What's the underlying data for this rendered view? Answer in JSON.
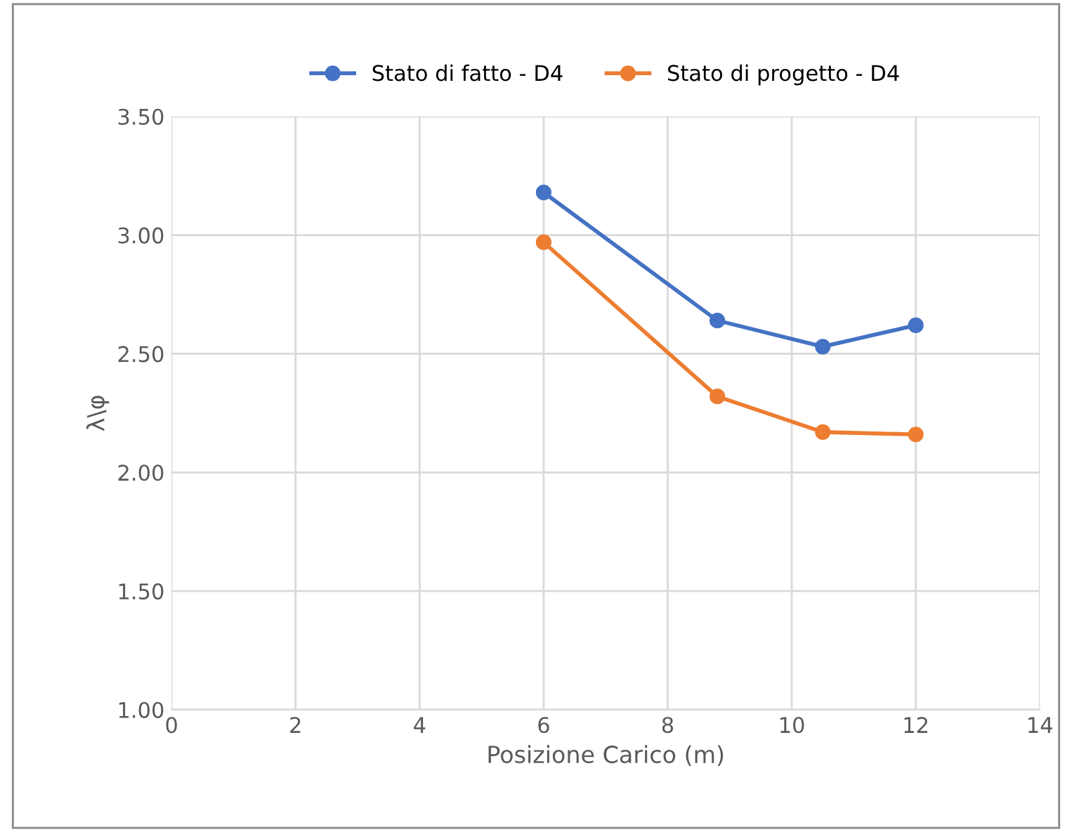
{
  "chart_data": {
    "type": "line",
    "xlabel": "Posizione Carico (m)",
    "ylabel": "λ\\φ",
    "xlim": [
      0,
      14
    ],
    "xticks": [
      0,
      2,
      4,
      6,
      8,
      10,
      12,
      14
    ],
    "ylim": [
      1.0,
      3.5
    ],
    "yticks": [
      {
        "value": 1.0,
        "label": "1.00"
      },
      {
        "value": 1.5,
        "label": "1.50"
      },
      {
        "value": 2.0,
        "label": "2.00"
      },
      {
        "value": 2.5,
        "label": "2.50"
      },
      {
        "value": 3.0,
        "label": "3.00"
      },
      {
        "value": 3.5,
        "label": "3.50"
      }
    ],
    "grid": true,
    "legend": "top",
    "marker": "circle",
    "line_style": "solid",
    "series": [
      {
        "name": "Stato di fatto - D4",
        "color": "#4472c4",
        "x": [
          6,
          8.8,
          10.5,
          12
        ],
        "values": [
          3.18,
          2.64,
          2.53,
          2.62
        ]
      },
      {
        "name": "Stato di progetto - D4",
        "color": "#ed7d31",
        "x": [
          6,
          8.8,
          10.5,
          12
        ],
        "values": [
          2.97,
          2.32,
          2.17,
          2.16
        ]
      }
    ]
  }
}
